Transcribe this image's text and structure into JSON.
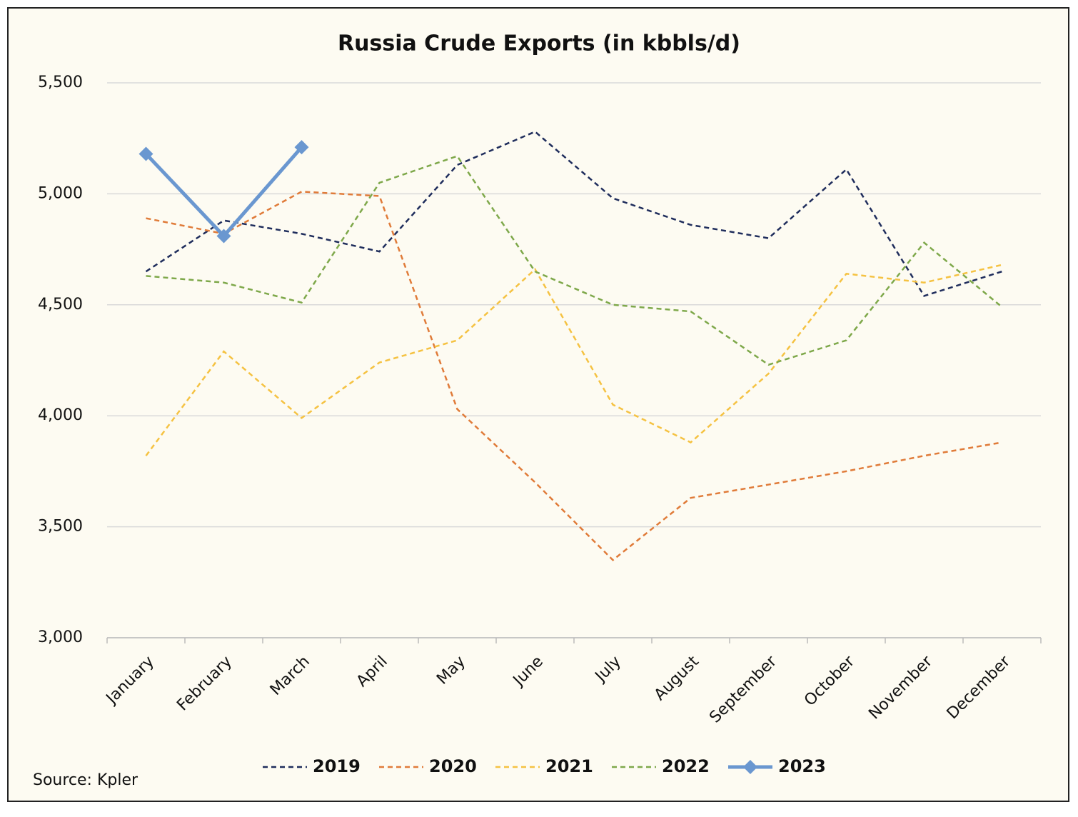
{
  "chart_data": {
    "type": "line",
    "title": "Russia Crude Exports (in kbbls/d)",
    "source": "Source: Kpler",
    "categories": [
      "January",
      "February",
      "March",
      "April",
      "May",
      "June",
      "July",
      "August",
      "September",
      "October",
      "November",
      "December"
    ],
    "ylim": [
      3000,
      5500
    ],
    "yticks": [
      {
        "value": 3000,
        "label": "3,000"
      },
      {
        "value": 3500,
        "label": "3,500"
      },
      {
        "value": 4000,
        "label": "4,000"
      },
      {
        "value": 4500,
        "label": "4,500"
      },
      {
        "value": 5000,
        "label": "5,000"
      },
      {
        "value": 5500,
        "label": "5,500"
      }
    ],
    "grid": true,
    "legend": "bottom",
    "series": [
      {
        "name": "2019",
        "color": "#1f2d5c",
        "line_style": "dashed",
        "values": [
          4650,
          4880,
          4820,
          4740,
          5130,
          5280,
          4980,
          4860,
          4800,
          5110,
          4540,
          4650
        ]
      },
      {
        "name": "2020",
        "color": "#e07b39",
        "line_style": "dashed",
        "values": [
          4890,
          4820,
          5010,
          4990,
          4030,
          3700,
          3350,
          3630,
          3690,
          3750,
          3820,
          3880
        ]
      },
      {
        "name": "2021",
        "color": "#f5c242",
        "line_style": "dashed",
        "values": [
          3820,
          4290,
          3990,
          4240,
          4340,
          4660,
          4050,
          3880,
          4190,
          4640,
          4600,
          4680
        ]
      },
      {
        "name": "2022",
        "color": "#7ea84a",
        "line_style": "dashed",
        "values": [
          4630,
          4600,
          4510,
          5050,
          5170,
          4650,
          4500,
          4470,
          4230,
          4340,
          4780,
          4490
        ]
      },
      {
        "name": "2023",
        "color": "#6a97d0",
        "line_style": "solid",
        "marker": "diamond",
        "values": [
          5180,
          4810,
          5210,
          null,
          null,
          null,
          null,
          null,
          null,
          null,
          null,
          null
        ]
      }
    ]
  }
}
